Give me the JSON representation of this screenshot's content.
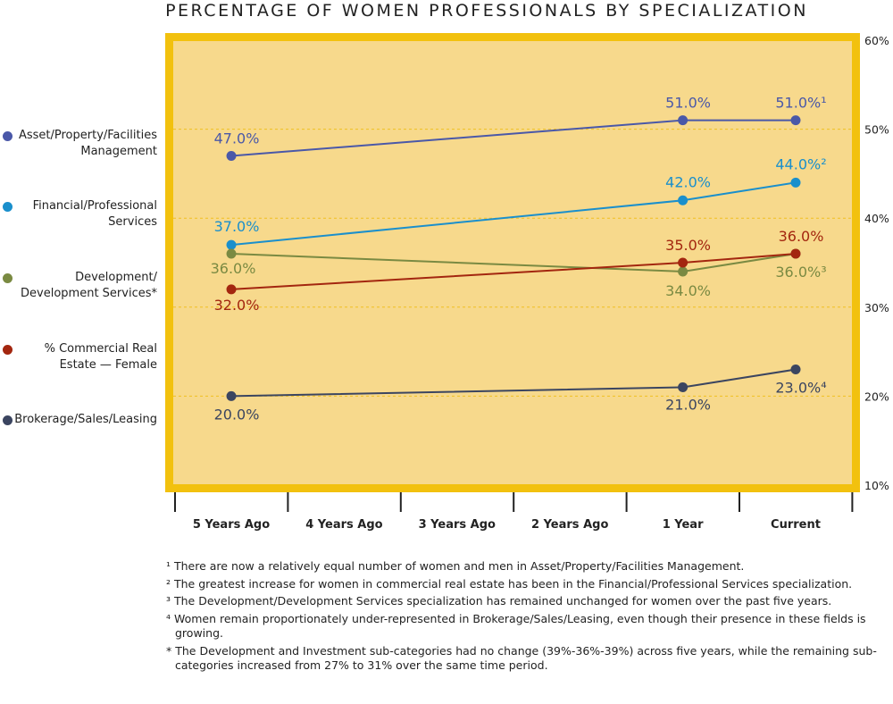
{
  "chart_data": {
    "type": "line",
    "title": "PERCENTAGE OF WOMEN PROFESSIONALS BY SPECIALIZATION",
    "categories": [
      "5 Years Ago",
      "4 Years Ago",
      "3 Years Ago",
      "2 Years Ago",
      "1 Year",
      "Current"
    ],
    "ylim": [
      10,
      60
    ],
    "y_ticks": [
      "60%",
      "50%",
      "40%",
      "30%",
      "20%",
      "10%"
    ],
    "y_axis_side": "right",
    "grid": "dashed horizontal",
    "legend_placement": "left",
    "series": [
      {
        "name": "Asset/Property/Facilities Management",
        "legend_lines": [
          "Asset/Property/Facilities",
          "Management"
        ],
        "color": "#4a58a8",
        "points": [
          {
            "x": "5 Years Ago",
            "y": 47.0,
            "label": "47.0%",
            "note": ""
          },
          {
            "x": "1 Year",
            "y": 51.0,
            "label": "51.0%",
            "note": ""
          },
          {
            "x": "Current",
            "y": 51.0,
            "label": "51.0%",
            "note": "1"
          }
        ]
      },
      {
        "name": "Financial/Professional Services",
        "legend_lines": [
          "Financial/Professional",
          "Services"
        ],
        "color": "#1a8fcc",
        "points": [
          {
            "x": "5 Years Ago",
            "y": 37.0,
            "label": "37.0%",
            "note": ""
          },
          {
            "x": "1 Year",
            "y": 42.0,
            "label": "42.0%",
            "note": ""
          },
          {
            "x": "Current",
            "y": 44.0,
            "label": "44.0%",
            "note": "2"
          }
        ]
      },
      {
        "name": "Development/ Development Services*",
        "legend_lines": [
          "Development/",
          "Development Services*"
        ],
        "color": "#7a8a42",
        "points": [
          {
            "x": "5 Years Ago",
            "y": 36.0,
            "label": "36.0%",
            "note": ""
          },
          {
            "x": "1 Year",
            "y": 34.0,
            "label": "34.0%",
            "note": ""
          },
          {
            "x": "Current",
            "y": 36.0,
            "label": "36.0%",
            "note": "3"
          }
        ]
      },
      {
        "name": "% Commercial Real Estate — Female",
        "legend_lines": [
          "% Commercial Real",
          "Estate — Female"
        ],
        "color": "#a3260f",
        "points": [
          {
            "x": "5 Years Ago",
            "y": 32.0,
            "label": "32.0%",
            "note": ""
          },
          {
            "x": "1 Year",
            "y": 35.0,
            "label": "35.0%",
            "note": ""
          },
          {
            "x": "Current",
            "y": 36.0,
            "label": "36.0%",
            "note": ""
          }
        ]
      },
      {
        "name": "Brokerage/Sales/Leasing",
        "legend_lines": [
          "Brokerage/Sales/Leasing"
        ],
        "color": "#3b4560",
        "points": [
          {
            "x": "5 Years Ago",
            "y": 20.0,
            "label": "20.0%",
            "note": ""
          },
          {
            "x": "1 Year",
            "y": 21.0,
            "label": "21.0%",
            "note": ""
          },
          {
            "x": "Current",
            "y": 23.0,
            "label": "23.0%",
            "note": "4"
          }
        ]
      }
    ],
    "colors": {
      "frame": "#f2c10e",
      "plot_bg": "#f7d98c",
      "grid": "#f0c020"
    }
  },
  "notes": [
    "¹ There are now a relatively equal number of women and men in Asset/Property/Facilities Management.",
    "² The greatest increase for women in commercial real estate has been in the Financial/Professional Services specialization.",
    "³ The Development/Development Services specialization has remained unchanged for women over the past five years.",
    "⁴ Women remain proportionately under-represented in Brokerage/Sales/Leasing, even though their presence in these fields is growing.",
    "* The Development and Investment sub-categories had no change (39%-36%-39%) across five years, while the remaining sub-categories increased from 27% to 31% over the same time period."
  ]
}
